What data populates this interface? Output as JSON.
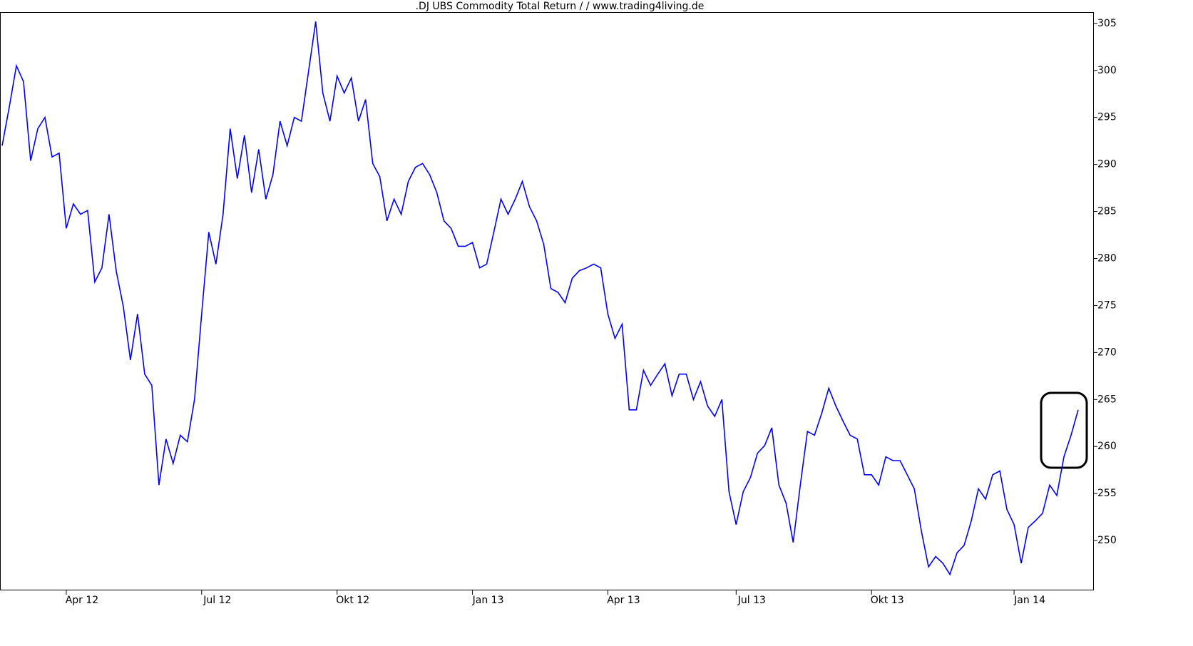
{
  "chart_data": {
    "type": "line",
    "title": ".DJ UBS Commodity Total Return /  / www.trading4living.de",
    "categories": [
      null,
      null,
      null,
      null,
      null,
      null,
      null,
      null,
      null,
      "Apr 12",
      null,
      null,
      null,
      null,
      null,
      null,
      null,
      null,
      null,
      null,
      null,
      null,
      null,
      null,
      null,
      null,
      null,
      null,
      "Jul 12",
      null,
      null,
      null,
      null,
      null,
      null,
      null,
      null,
      null,
      null,
      null,
      null,
      null,
      null,
      null,
      null,
      null,
      null,
      "Okt 12",
      null,
      null,
      null,
      null,
      null,
      null,
      null,
      null,
      null,
      null,
      null,
      null,
      null,
      null,
      null,
      null,
      null,
      null,
      "Jan 13",
      null,
      null,
      null,
      null,
      null,
      null,
      null,
      null,
      null,
      null,
      null,
      null,
      null,
      null,
      null,
      null,
      null,
      null,
      "Apr 13",
      null,
      null,
      null,
      null,
      null,
      null,
      null,
      null,
      null,
      null,
      null,
      null,
      null,
      null,
      null,
      null,
      null,
      "Jul 13",
      null,
      null,
      null,
      null,
      null,
      null,
      null,
      null,
      null,
      null,
      null,
      null,
      null,
      null,
      null,
      null,
      null,
      null,
      "Okt 13",
      null,
      null,
      null,
      null,
      null,
      null,
      null,
      null,
      null,
      null,
      null,
      null,
      null,
      null,
      null,
      null,
      null,
      null,
      null,
      "Jan 14",
      null,
      null,
      null,
      null,
      null,
      null,
      null,
      null,
      null
    ],
    "series": [
      {
        "name": ".DJ UBS Commodity Total Return",
        "color": "#0000ff",
        "values": [
          292.0,
          296.1,
          300.5,
          298.8,
          290.4,
          293.8,
          295.0,
          290.8,
          291.2,
          283.2,
          285.8,
          284.7,
          285.1,
          277.5,
          279.0,
          284.7,
          278.7,
          274.9,
          269.2,
          274.1,
          267.7,
          266.5,
          255.9,
          260.8,
          258.2,
          261.2,
          260.5,
          265.0,
          274.1,
          282.8,
          279.4,
          284.7,
          293.8,
          288.5,
          293.1,
          287.0,
          291.6,
          286.3,
          288.9,
          294.6,
          292.0,
          295.0,
          294.6,
          299.9,
          305.2,
          297.6,
          294.6,
          299.4,
          297.6,
          299.2,
          294.6,
          296.9,
          290.1,
          288.7,
          284.0,
          286.3,
          284.7,
          288.2,
          289.7,
          290.1,
          288.9,
          287.0,
          284.0,
          283.2,
          281.3,
          281.3,
          281.7,
          279.0,
          279.4,
          282.8,
          286.3,
          284.7,
          286.3,
          288.2,
          285.5,
          284.0,
          281.5,
          276.8,
          276.4,
          275.3,
          277.9,
          278.7,
          279.0,
          279.4,
          279.0,
          274.1,
          271.5,
          273.0,
          263.9,
          263.9,
          268.1,
          266.5,
          267.7,
          268.8,
          265.4,
          267.7,
          267.7,
          265.0,
          266.9,
          264.3,
          263.2,
          265.0,
          255.2,
          251.7,
          255.2,
          256.7,
          259.3,
          260.1,
          262.0,
          255.9,
          254.0,
          249.8,
          255.9,
          261.6,
          261.2,
          263.5,
          266.2,
          264.3,
          262.7,
          261.2,
          260.8,
          257.0,
          257.0,
          255.9,
          258.9,
          258.5,
          258.5,
          257.0,
          255.5,
          251.0,
          247.2,
          248.3,
          247.6,
          246.4,
          248.7,
          249.5,
          252.1,
          255.5,
          254.4,
          257.0,
          257.4,
          253.3,
          251.7,
          247.6,
          251.4,
          252.1,
          252.9,
          255.9,
          254.8,
          258.9,
          261.2,
          263.9
        ]
      }
    ],
    "ylim": [
      244.7,
      306.2
    ],
    "yticks": [
      250,
      255,
      260,
      265,
      270,
      275,
      280,
      285,
      290,
      295,
      300,
      305
    ],
    "grid": false
  }
}
